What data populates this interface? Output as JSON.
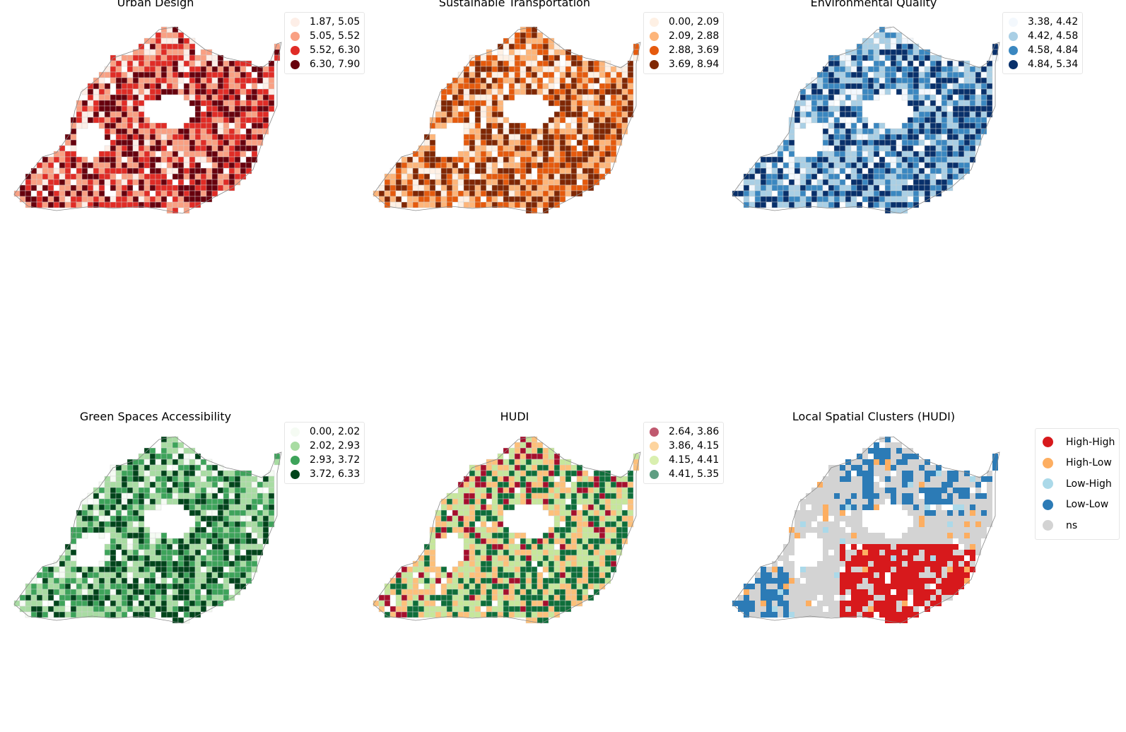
{
  "panels": [
    {
      "id": "urban-design",
      "title": "Urban Design",
      "palette": [
        "#fdeee7",
        "#f9a083",
        "#e02c26",
        "#67000d"
      ],
      "seed": 11,
      "legend": [
        {
          "label": "1.87, 5.05",
          "color": "#fdeee7"
        },
        {
          "label": "5.05, 5.52",
          "color": "#f9a083"
        },
        {
          "label": "5.52, 6.30",
          "color": "#e02c26"
        },
        {
          "label": "6.30, 7.90",
          "color": "#67000d"
        }
      ]
    },
    {
      "id": "sustainable-transportation",
      "title": "Sustainable Transportation",
      "palette": [
        "#fef0e4",
        "#fdb57a",
        "#e55a0d",
        "#7f2704"
      ],
      "seed": 23,
      "legend": [
        {
          "label": "0.00, 2.09",
          "color": "#fef0e4"
        },
        {
          "label": "2.09, 2.88",
          "color": "#fdb57a"
        },
        {
          "label": "2.88, 3.69",
          "color": "#e55a0d"
        },
        {
          "label": "3.69, 8.94",
          "color": "#7f2704"
        }
      ]
    },
    {
      "id": "environmental-quality",
      "title": "Environmental Quality",
      "palette": [
        "#f3f8fd",
        "#a9cfe5",
        "#3a87c0",
        "#08306b"
      ],
      "seed": 37,
      "legend": [
        {
          "label": "3.38, 4.42",
          "color": "#f3f8fd"
        },
        {
          "label": "4.42, 4.58",
          "color": "#a9cfe5"
        },
        {
          "label": "4.58, 4.84",
          "color": "#3a87c0"
        },
        {
          "label": "4.84, 5.34",
          "color": "#08306b"
        }
      ]
    },
    {
      "id": "green-spaces-accessibility",
      "title": "Green Spaces Accessibility",
      "palette": [
        "#f5fbf3",
        "#a8dca2",
        "#3da35a",
        "#00441b"
      ],
      "seed": 41,
      "legend": [
        {
          "label": "0.00, 2.02",
          "color": "#f5fbf3"
        },
        {
          "label": "2.02, 2.93",
          "color": "#a8dca2"
        },
        {
          "label": "2.93, 3.72",
          "color": "#3da35a"
        },
        {
          "label": "3.72, 6.33",
          "color": "#00441b"
        }
      ]
    },
    {
      "id": "hudi",
      "title": "HUDI",
      "palette": [
        "#a50f2d",
        "#fdc07a",
        "#c6e79b",
        "#0e6e3a"
      ],
      "seed": 53,
      "legend": [
        {
          "label": "2.64, 3.86",
          "color": "#c0596f"
        },
        {
          "label": "3.86, 4.15",
          "color": "#fdd49e"
        },
        {
          "label": "4.15, 4.41",
          "color": "#d9efaf"
        },
        {
          "label": "4.41, 5.35",
          "color": "#5f9e82"
        }
      ]
    },
    {
      "id": "local-spatial-clusters",
      "title": "Local Spatial Clusters (HUDI)",
      "palette": [
        "#d7191c",
        "#fdae61",
        "#abd9e9",
        "#2c7bb6",
        "#d3d3d3"
      ],
      "seed": 67,
      "legend": [
        {
          "label": "High-High",
          "color": "#d7191c"
        },
        {
          "label": "High-Low",
          "color": "#fdae61"
        },
        {
          "label": "Low-High",
          "color": "#abd9e9"
        },
        {
          "label": "Low-Low",
          "color": "#2c7bb6"
        },
        {
          "label": "ns",
          "color": "#d3d3d3"
        }
      ]
    }
  ]
}
